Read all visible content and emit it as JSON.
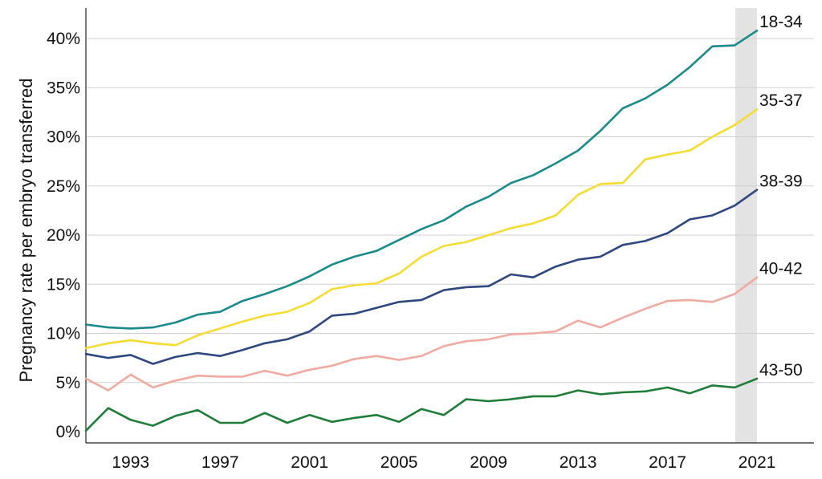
{
  "chart_data": {
    "type": "line",
    "title": "",
    "xlabel": "",
    "ylabel": "Pregnancy rate per embryo transferred",
    "x": [
      1991,
      1992,
      1993,
      1994,
      1995,
      1996,
      1997,
      1998,
      1999,
      2000,
      2001,
      2002,
      2003,
      2004,
      2005,
      2006,
      2007,
      2008,
      2009,
      2010,
      2011,
      2012,
      2013,
      2014,
      2015,
      2016,
      2017,
      2018,
      2019,
      2020,
      2021
    ],
    "x_ticks": [
      "1993",
      "1997",
      "2001",
      "2005",
      "2009",
      "2013",
      "2017",
      "2021"
    ],
    "y_ticks": [
      "0%",
      "5%",
      "10%",
      "15%",
      "20%",
      "25%",
      "30%",
      "35%",
      "40%"
    ],
    "ylim": [
      0,
      43
    ],
    "xlim": [
      1991,
      2028
    ],
    "grid": "horizontal",
    "highlight_year": 2021,
    "highlight_color": "#e3e3e3",
    "series": [
      {
        "name": "18-34",
        "color": "#1a8a8a",
        "values": [
          10.9,
          10.6,
          10.5,
          10.6,
          11.1,
          11.9,
          12.2,
          13.3,
          14.0,
          14.8,
          15.8,
          17.0,
          17.8,
          18.4,
          19.5,
          20.6,
          21.5,
          22.9,
          23.9,
          25.3,
          26.1,
          27.3,
          28.6,
          30.6,
          32.9,
          33.9,
          35.3,
          37.1,
          39.2,
          39.3,
          40.8
        ]
      },
      {
        "name": "35-37",
        "color": "#f5dc32",
        "values": [
          8.5,
          9.0,
          9.3,
          9.0,
          8.8,
          9.8,
          10.5,
          11.2,
          11.8,
          12.2,
          13.1,
          14.5,
          14.9,
          15.1,
          16.1,
          17.8,
          18.9,
          19.3,
          20.0,
          20.7,
          21.2,
          22.0,
          24.1,
          25.2,
          25.3,
          27.7,
          28.2,
          28.6,
          30.0,
          31.2,
          32.8
        ]
      },
      {
        "name": "38-39",
        "color": "#2e4780",
        "values": [
          7.9,
          7.5,
          7.8,
          6.9,
          7.6,
          8.0,
          7.7,
          8.3,
          9.0,
          9.4,
          10.2,
          11.8,
          12.0,
          12.6,
          13.2,
          13.4,
          14.4,
          14.7,
          14.8,
          16.0,
          15.7,
          16.8,
          17.5,
          17.8,
          19.0,
          19.4,
          20.2,
          21.6,
          22.0,
          23.0,
          24.6
        ]
      },
      {
        "name": "40-42",
        "color": "#f0aaa0",
        "values": [
          5.4,
          4.2,
          5.8,
          4.5,
          5.2,
          5.7,
          5.6,
          5.6,
          6.2,
          5.7,
          6.3,
          6.7,
          7.4,
          7.7,
          7.3,
          7.7,
          8.7,
          9.2,
          9.4,
          9.9,
          10.0,
          10.2,
          11.3,
          10.6,
          11.6,
          12.5,
          13.3,
          13.4,
          13.2,
          14.0,
          15.7
        ]
      },
      {
        "name": "43-50",
        "color": "#1e7d38",
        "values": [
          0.1,
          2.4,
          1.2,
          0.6,
          1.6,
          2.2,
          0.9,
          0.9,
          1.9,
          0.9,
          1.7,
          1.0,
          1.4,
          1.7,
          1.0,
          2.3,
          1.7,
          3.3,
          3.1,
          3.3,
          3.6,
          3.6,
          4.2,
          3.8,
          4.0,
          4.1,
          4.5,
          3.9,
          4.7,
          4.5,
          5.4
        ]
      }
    ]
  }
}
